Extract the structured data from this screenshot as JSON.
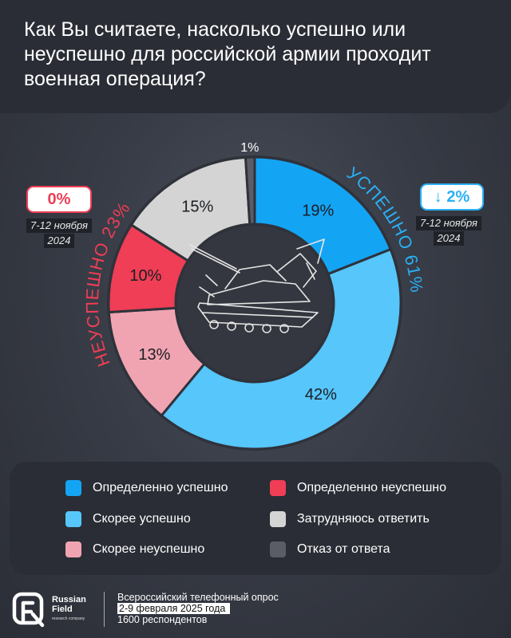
{
  "header": {
    "title": "Как Вы считаете, насколько успешно или неуспешно для российской армии проходит военная операция?"
  },
  "chart_data": {
    "type": "pie",
    "title": "Как Вы считаете, насколько успешно или неуспешно для российской армии проходит военная операция?",
    "slices": [
      {
        "label": "Определенно успешно",
        "value": 19,
        "text": "19%",
        "color": "#14a4f4"
      },
      {
        "label": "Скорее успешно",
        "value": 42,
        "text": "42%",
        "color": "#56c6fb"
      },
      {
        "label": "Скорее неуспешно",
        "value": 13,
        "text": "13%",
        "color": "#f0a4b2"
      },
      {
        "label": "Определенно неуспешно",
        "value": 10,
        "text": "10%",
        "color": "#ef3e55"
      },
      {
        "label": "Затрудняюсь ответить",
        "value": 15,
        "text": "15%",
        "color": "#d4d4d4"
      },
      {
        "label": "Отказ от ответа",
        "value": 1,
        "text": "1%",
        "color": "#5a5d66"
      }
    ],
    "groups": [
      {
        "label": "УСПЕШНО 61%",
        "color": "#2ab0f5"
      },
      {
        "label": "НЕУСПЕШНО 23%",
        "color": "#ef3e55"
      }
    ]
  },
  "badges": {
    "left": {
      "value": "0%",
      "date_line1": "7-12 ноября",
      "date_line2": "2024",
      "color": "#ef3e55"
    },
    "right": {
      "value": "↓ 2%",
      "date_line1": "7-12 ноября",
      "date_line2": "2024",
      "color": "#2ab0f5"
    }
  },
  "legend": {
    "items": [
      {
        "label": "Определенно успешно",
        "color": "#14a4f4"
      },
      {
        "label": "Определенно неуспешно",
        "color": "#ef3e55"
      },
      {
        "label": "Скорее успешно",
        "color": "#56c6fb"
      },
      {
        "label": "Затрудняюсь ответить",
        "color": "#d4d4d4"
      },
      {
        "label": "Скорее неуспешно",
        "color": "#f0a4b2"
      },
      {
        "label": "Отказ от ответа",
        "color": "#5a5d66"
      }
    ]
  },
  "footer": {
    "logo_line1": "Russian",
    "logo_line2": "Field",
    "logo_sub": "research company",
    "line1": "Всероссийский телефонный опрос",
    "line2": "2-9 февраля 2025  года",
    "line3": "1600 респондентов"
  }
}
